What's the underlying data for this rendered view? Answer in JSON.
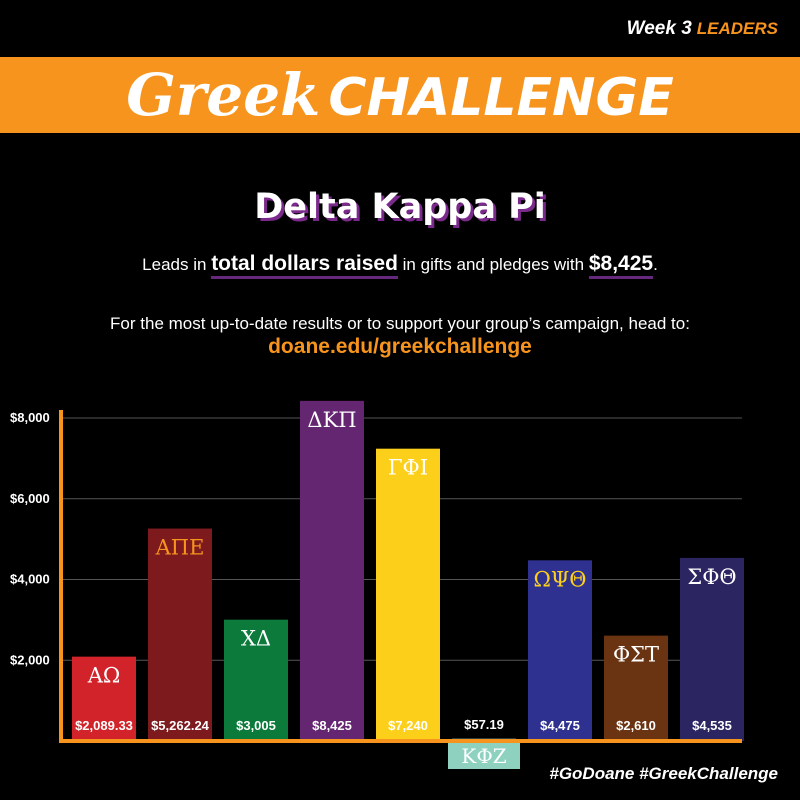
{
  "header": {
    "week_label": "Week 3",
    "leaders_label": "LEADERS",
    "title_script": "Greek",
    "title_caps": "CHALLENGE"
  },
  "leader": {
    "name": "Delta Kappa Pi",
    "leads_prefix": "Leads in",
    "leads_emphasis": "total dollars raised",
    "leads_middle": "in gifts and pledges with",
    "leads_amount": "$8,425",
    "leads_end": "."
  },
  "info": {
    "text": "For the most up-to-date results or to support your group’s campaign, head to:",
    "link": "doane.edu/greekchallenge"
  },
  "footer": {
    "hashtags": "#GoDoane #GreekChallenge"
  },
  "colors": {
    "orange": "#f7941d",
    "background": "#000000",
    "grid": "#555555"
  },
  "chart_data": {
    "type": "bar",
    "categories": [
      "ΑΩ",
      "ΑΠΕ",
      "ΧΔ",
      "ΔΚΠ",
      "ΓΦΙ",
      "ΚΦΖ",
      "ΩΨΘ",
      "ΦΣΤ",
      "ΣΦΘ"
    ],
    "values": [
      2089.33,
      5262.24,
      3005,
      8425,
      7240,
      57.19,
      4475,
      2610,
      4535
    ],
    "value_labels": [
      "$2,089.33",
      "$5,262.24",
      "$3,005",
      "$8,425",
      "$7,240",
      "$57.19",
      "$4,475",
      "$2,610",
      "$4,535"
    ],
    "colors": [
      "#d2232a",
      "#7d1a1e",
      "#0b7a3b",
      "#652671",
      "#fcd01a",
      "#8fd1bf",
      "#2e3190",
      "#6a3412",
      "#2b2562"
    ],
    "category_label_colors": [
      "#ffffff",
      "#f7941d",
      "#ffffff",
      "#ffffff",
      "#ffffff",
      "#ffffff",
      "#fcd01a",
      "#ffffff",
      "#ffffff"
    ],
    "y_ticks": [
      2000,
      4000,
      6000,
      8000
    ],
    "y_tick_labels": [
      "$2,000",
      "$4,000",
      "$6,000",
      "$8,000"
    ],
    "ylim": [
      0,
      8000
    ],
    "grid": true
  }
}
